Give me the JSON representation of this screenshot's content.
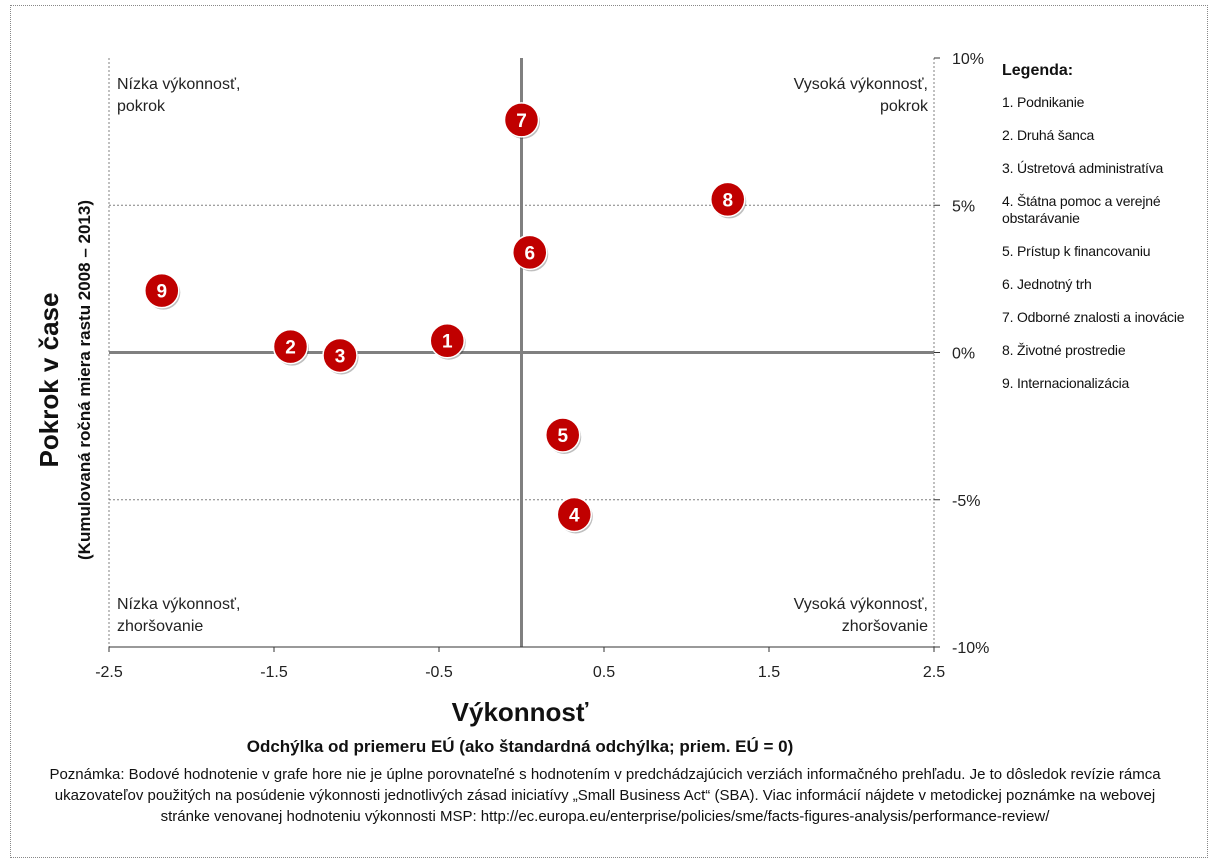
{
  "chart_data": {
    "type": "scatter",
    "xlabel": "Výkonnosť",
    "xlabel_sub": "Odchýlka od priemeru EÚ (ako štandardná odchýlka; priem. EÚ = 0)",
    "ylabel": "Pokrok v čase",
    "ylabel_sub": "(Kumulovaná ročná miera rastu 2008 – 2013)",
    "xlim": [
      -2.5,
      2.5
    ],
    "ylim": [
      -10,
      10
    ],
    "x_ticks": [
      "-2.5",
      "-1.5",
      "-0.5",
      "0.5",
      "1.5",
      "2.5"
    ],
    "y_ticks": [
      "10%",
      "5%",
      "0%",
      "-5%",
      "-10%"
    ],
    "points": [
      {
        "label": "1",
        "x": -0.45,
        "y": 0.4
      },
      {
        "label": "2",
        "x": -1.4,
        "y": 0.2
      },
      {
        "label": "3",
        "x": -1.1,
        "y": -0.1
      },
      {
        "label": "4",
        "x": 0.32,
        "y": -5.5
      },
      {
        "label": "5",
        "x": 0.25,
        "y": -2.8
      },
      {
        "label": "6",
        "x": 0.05,
        "y": 3.4
      },
      {
        "label": "7",
        "x": 0.0,
        "y": 7.9
      },
      {
        "label": "8",
        "x": 1.25,
        "y": 5.2
      },
      {
        "label": "9",
        "x": -2.18,
        "y": 2.1
      }
    ],
    "quadrants": {
      "top_left": [
        "Nízka výkonnosť,",
        "pokrok"
      ],
      "top_right": [
        "Vysoká výkonnosť,",
        "pokrok"
      ],
      "bottom_left": [
        "Nízka výkonnosť,",
        "zhoršovanie"
      ],
      "bottom_right": [
        "Vysoká výkonnosť,",
        "zhoršovanie"
      ]
    },
    "legend_title": "Legenda:",
    "legend_items": [
      "1. Podnikanie",
      "2. Druhá šanca",
      "3. Ústretová administratíva",
      "4. Štátna pomoc a verejné obstarávanie",
      "5. Prístup k financovaniu",
      "6. Jednotný trh",
      "7. Odborné znalosti a inovácie",
      "8. Životné prostredie",
      "9. Internacionalizácia"
    ],
    "colors": {
      "marker": "#c00000",
      "marker_text": "#ffffff",
      "axis": "#808080",
      "grid": "#808080"
    }
  },
  "note": "Poznámka: Bodové hodnotenie v grafe hore nie je úplne porovnateľné s hodnotením v predchádzajúcich verziách informačného prehľadu. Je to dôsledok revízie rámca ukazovateľov použitých na posúdenie výkonnosti jednotlivých zásad iniciatívy „Small Business Act“ (SBA). Viac informácií nájdete v metodickej poznámke na webovej stránke venovanej hodnoteniu výkonnosti MSP: http://ec.europa.eu/enterprise/policies/sme/facts-figures-analysis/performance-review/"
}
